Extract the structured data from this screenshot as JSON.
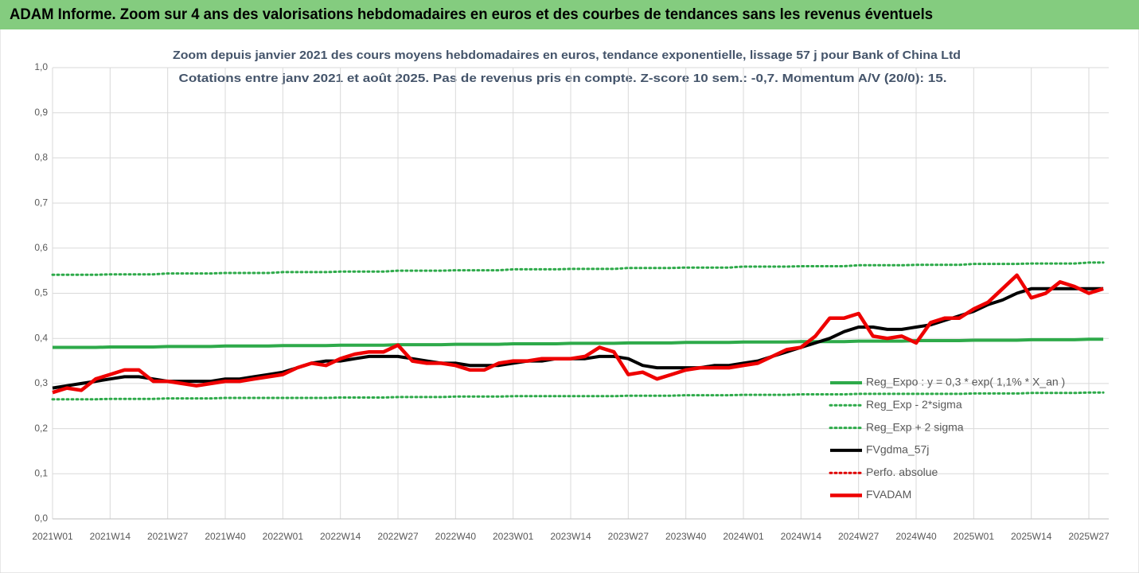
{
  "chart_data": {
    "type": "line",
    "header": "ADAM Informe. Zoom sur 4 ans des valorisations hebdomadaires en euros et des courbes de tendances sans les revenus éventuels",
    "title": "Zoom depuis janvier 2021 des cours moyens hebdomadaires en euros, tendance exponentielle, lissage 57 j pour Bank of China Ltd",
    "subtitle": "Cotations entre janv 2021 et août 2025.  Pas de revenus pris en compte. Z-score 10 sem.: -0,7. Momentum A/V (20/0): 15.",
    "categories": [
      "2021W01",
      null,
      null,
      null,
      "2021W14",
      null,
      null,
      null,
      "2021W27",
      null,
      null,
      null,
      "2021W40",
      null,
      null,
      null,
      "2022W01",
      null,
      null,
      null,
      "2022W14",
      null,
      null,
      null,
      "2022W27",
      null,
      null,
      null,
      "2022W40",
      null,
      null,
      null,
      "2023W01",
      null,
      null,
      null,
      "2023W14",
      null,
      null,
      null,
      "2023W27",
      null,
      null,
      null,
      "2023W40",
      null,
      null,
      null,
      "2024W01",
      null,
      null,
      null,
      "2024W14",
      null,
      null,
      null,
      "2024W27",
      null,
      null,
      null,
      "2024W40",
      null,
      null,
      null,
      "2025W01",
      null,
      null,
      null,
      "2025W14",
      null,
      null,
      null,
      "2025W27",
      null
    ],
    "ylim": [
      0,
      1
    ],
    "yticks": [
      {
        "value": 0,
        "label": "0,0"
      },
      {
        "value": 0.1,
        "label": "0,1"
      },
      {
        "value": 0.2,
        "label": "0,2"
      },
      {
        "value": 0.3,
        "label": "0,3"
      },
      {
        "value": 0.4,
        "label": "0,4"
      },
      {
        "value": 0.5,
        "label": "0,5"
      },
      {
        "value": 0.6,
        "label": "0,6"
      },
      {
        "value": 0.7,
        "label": "0,7"
      },
      {
        "value": 0.8,
        "label": "0,8"
      },
      {
        "value": 0.9,
        "label": "0,9"
      },
      {
        "value": 1,
        "label": "1,0"
      }
    ],
    "grid": true,
    "legend": "right",
    "series": [
      {
        "name": "Reg_Expo : y = 0,3 * exp( 1,1% *  X_an )",
        "color": "#2eaa4a",
        "style": "solid",
        "values": [
          0.38,
          0.38,
          0.38,
          0.38,
          0.381,
          0.381,
          0.381,
          0.381,
          0.382,
          0.382,
          0.382,
          0.382,
          0.383,
          0.383,
          0.383,
          0.383,
          0.384,
          0.384,
          0.384,
          0.384,
          0.385,
          0.385,
          0.385,
          0.385,
          0.386,
          0.386,
          0.386,
          0.386,
          0.387,
          0.387,
          0.387,
          0.387,
          0.388,
          0.388,
          0.388,
          0.388,
          0.389,
          0.389,
          0.389,
          0.389,
          0.39,
          0.39,
          0.39,
          0.39,
          0.391,
          0.391,
          0.391,
          0.391,
          0.392,
          0.392,
          0.392,
          0.392,
          0.393,
          0.393,
          0.393,
          0.393,
          0.394,
          0.394,
          0.394,
          0.394,
          0.395,
          0.395,
          0.395,
          0.395,
          0.396,
          0.396,
          0.396,
          0.396,
          0.397,
          0.397,
          0.397,
          0.397,
          0.398,
          0.398
        ]
      },
      {
        "name": "Reg_Exp - 2*sigma",
        "color": "#2eaa4a",
        "style": "dotted",
        "values": [
          0.265,
          0.265,
          0.265,
          0.265,
          0.266,
          0.266,
          0.266,
          0.266,
          0.267,
          0.267,
          0.267,
          0.267,
          0.268,
          0.268,
          0.268,
          0.268,
          0.268,
          0.268,
          0.268,
          0.268,
          0.269,
          0.269,
          0.269,
          0.269,
          0.27,
          0.27,
          0.27,
          0.27,
          0.271,
          0.271,
          0.271,
          0.271,
          0.272,
          0.272,
          0.272,
          0.272,
          0.272,
          0.272,
          0.272,
          0.272,
          0.273,
          0.273,
          0.273,
          0.273,
          0.274,
          0.274,
          0.274,
          0.274,
          0.275,
          0.275,
          0.275,
          0.275,
          0.276,
          0.276,
          0.276,
          0.276,
          0.277,
          0.277,
          0.277,
          0.277,
          0.277,
          0.277,
          0.277,
          0.277,
          0.278,
          0.278,
          0.278,
          0.278,
          0.279,
          0.279,
          0.279,
          0.279,
          0.28,
          0.28
        ]
      },
      {
        "name": "Reg_Exp + 2 sigma",
        "color": "#2eaa4a",
        "style": "dotted",
        "values": [
          0.541,
          0.541,
          0.541,
          0.541,
          0.542,
          0.542,
          0.542,
          0.542,
          0.544,
          0.544,
          0.544,
          0.544,
          0.545,
          0.545,
          0.545,
          0.545,
          0.547,
          0.547,
          0.547,
          0.547,
          0.548,
          0.548,
          0.548,
          0.548,
          0.55,
          0.55,
          0.55,
          0.55,
          0.551,
          0.551,
          0.551,
          0.551,
          0.553,
          0.553,
          0.553,
          0.553,
          0.554,
          0.554,
          0.554,
          0.554,
          0.556,
          0.556,
          0.556,
          0.556,
          0.557,
          0.557,
          0.557,
          0.557,
          0.559,
          0.559,
          0.559,
          0.559,
          0.56,
          0.56,
          0.56,
          0.56,
          0.562,
          0.562,
          0.562,
          0.562,
          0.563,
          0.563,
          0.563,
          0.563,
          0.565,
          0.565,
          0.565,
          0.565,
          0.566,
          0.566,
          0.566,
          0.566,
          0.568,
          0.568
        ]
      },
      {
        "name": "FVgdma_57j",
        "color": "#000000",
        "style": "solid",
        "values": [
          0.29,
          0.295,
          0.3,
          0.305,
          0.31,
          0.315,
          0.315,
          0.31,
          0.305,
          0.305,
          0.305,
          0.305,
          0.31,
          0.31,
          0.315,
          0.32,
          0.325,
          0.335,
          0.345,
          0.35,
          0.35,
          0.355,
          0.36,
          0.36,
          0.36,
          0.355,
          0.35,
          0.345,
          0.345,
          0.34,
          0.34,
          0.34,
          0.345,
          0.35,
          0.35,
          0.355,
          0.355,
          0.355,
          0.36,
          0.36,
          0.355,
          0.34,
          0.335,
          0.335,
          0.335,
          0.335,
          0.34,
          0.34,
          0.345,
          0.35,
          0.36,
          0.37,
          0.38,
          0.39,
          0.4,
          0.415,
          0.425,
          0.425,
          0.42,
          0.42,
          0.425,
          0.43,
          0.44,
          0.45,
          0.46,
          0.475,
          0.485,
          0.5,
          0.51,
          0.51,
          0.51,
          0.51,
          0.51,
          0.51
        ]
      },
      {
        "name": "Perfo. absolue",
        "color": "#e00000",
        "style": "dotted",
        "values": [
          null,
          null,
          null,
          null,
          null,
          null,
          null,
          null,
          null,
          null,
          null,
          null,
          null,
          null,
          null,
          null,
          null,
          null,
          null,
          null,
          null,
          null,
          null,
          null,
          null,
          null,
          null,
          null,
          null,
          null,
          null,
          null,
          null,
          null,
          null,
          null,
          null,
          null,
          null,
          null,
          null,
          null,
          null,
          null,
          null,
          null,
          null,
          null,
          null,
          null,
          null,
          null,
          null,
          null,
          null,
          null,
          null,
          null,
          null,
          null,
          null,
          null,
          null,
          null,
          null,
          null,
          null,
          null,
          null,
          null,
          null,
          null,
          null,
          null
        ]
      },
      {
        "name": "FVADAM",
        "color": "#ee0000",
        "style": "thick",
        "values": [
          0.28,
          0.29,
          0.285,
          0.31,
          0.32,
          0.33,
          0.33,
          0.305,
          0.305,
          0.3,
          0.295,
          0.3,
          0.305,
          0.305,
          0.31,
          0.315,
          0.32,
          0.335,
          0.345,
          0.34,
          0.355,
          0.365,
          0.37,
          0.37,
          0.385,
          0.35,
          0.345,
          0.345,
          0.34,
          0.33,
          0.33,
          0.345,
          0.35,
          0.35,
          0.355,
          0.355,
          0.355,
          0.36,
          0.38,
          0.37,
          0.32,
          0.325,
          0.31,
          0.32,
          0.33,
          0.335,
          0.335,
          0.335,
          0.34,
          0.345,
          0.36,
          0.375,
          0.38,
          0.405,
          0.445,
          0.445,
          0.455,
          0.405,
          0.4,
          0.405,
          0.39,
          0.435,
          0.445,
          0.445,
          0.465,
          0.48,
          0.51,
          0.54,
          0.49,
          0.5,
          0.525,
          0.515,
          0.5,
          0.51
        ]
      }
    ]
  }
}
